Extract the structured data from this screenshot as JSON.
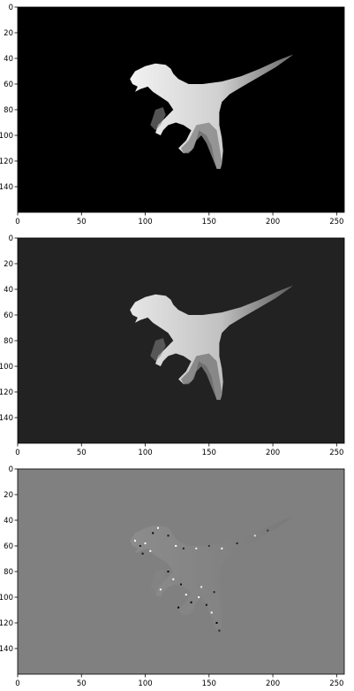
{
  "chart_data": [
    {
      "type": "heatmap",
      "title": "",
      "xlabel": "",
      "ylabel": "",
      "xlim": [
        0,
        256
      ],
      "ylim": [
        160,
        0
      ],
      "x_ticks": [
        "0",
        "50",
        "100",
        "150",
        "200",
        "250"
      ],
      "y_ticks": [
        "0",
        "20",
        "40",
        "60",
        "80",
        "100",
        "120",
        "140"
      ],
      "colormap": "gray",
      "background_color": "#000000",
      "subject": "dinosaur silhouette depth map"
    },
    {
      "type": "heatmap",
      "title": "",
      "xlabel": "",
      "ylabel": "",
      "xlim": [
        0,
        256
      ],
      "ylim": [
        160,
        0
      ],
      "x_ticks": [
        "0",
        "50",
        "100",
        "150",
        "200",
        "250"
      ],
      "y_ticks": [
        "0",
        "20",
        "40",
        "60",
        "80",
        "100",
        "120",
        "140"
      ],
      "colormap": "gray",
      "background_color": "#222222",
      "subject": "dinosaur silhouette predicted depth map"
    },
    {
      "type": "heatmap",
      "title": "",
      "xlabel": "",
      "ylabel": "",
      "xlim": [
        0,
        256
      ],
      "ylim": [
        160,
        0
      ],
      "x_ticks": [
        "0",
        "50",
        "100",
        "150",
        "200",
        "250"
      ],
      "y_ticks": [
        "0",
        "20",
        "40",
        "60",
        "80",
        "100",
        "120",
        "140"
      ],
      "colormap": "gray",
      "background_color": "#808080",
      "subject": "difference map"
    }
  ]
}
